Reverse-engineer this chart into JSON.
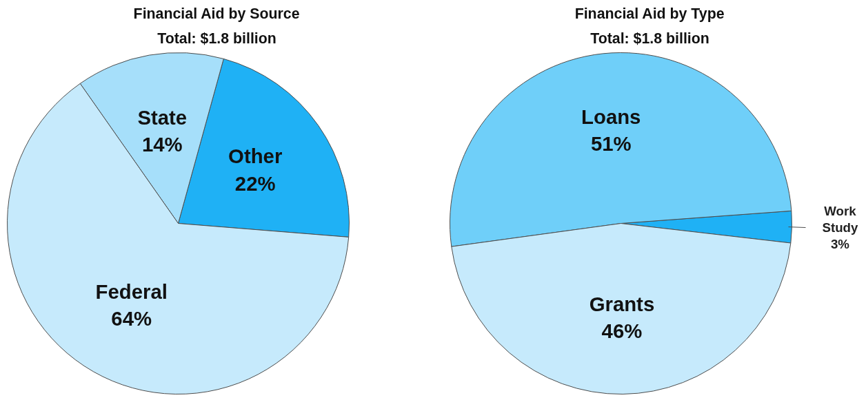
{
  "chart_data": [
    {
      "type": "pie",
      "title": "Financial Aid by Source",
      "subtitle": "Total: $1.8 billion",
      "categories": [
        "Other",
        "State",
        "Federal"
      ],
      "values": [
        22,
        14,
        64
      ],
      "value_labels": [
        "22%",
        "14%",
        "64%"
      ],
      "colors": [
        "#1fb1f5",
        "#a6dffa",
        "#c6eafc"
      ]
    },
    {
      "type": "pie",
      "title": "Financial Aid by Type",
      "subtitle": "Total: $1.8 billion",
      "categories": [
        "Work Study",
        "Loans",
        "Grants"
      ],
      "values": [
        3,
        51,
        46
      ],
      "value_labels": [
        "3%",
        "51%",
        "46%"
      ],
      "colors": [
        "#1fb1f5",
        "#6fcff9",
        "#c6eafc"
      ]
    }
  ]
}
